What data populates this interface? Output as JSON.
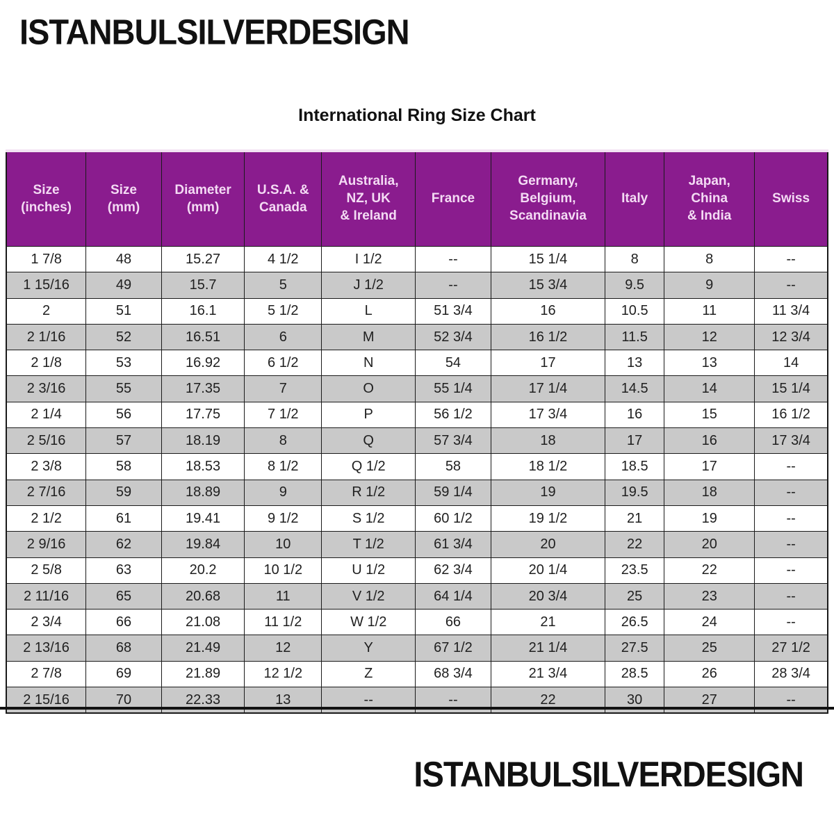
{
  "brand": {
    "top_label": "ISTANBULSILVERDESIGN",
    "bottom_label": "ISTANBULSILVERDESIGN"
  },
  "table": {
    "title": "International Ring Size Chart",
    "columns": [
      "Size\n(inches)",
      "Size\n(mm)",
      "Diameter\n(mm)",
      "U.S.A. &\nCanada",
      "Australia,\nNZ, UK\n& Ireland",
      "France",
      "Germany,\nBelgium,\nScandinavia",
      "Italy",
      "Japan,\nChina\n& India",
      "Swiss"
    ],
    "rows": [
      [
        "1 7/8",
        "48",
        "15.27",
        "4 1/2",
        "I 1/2",
        "--",
        "15 1/4",
        "8",
        "8",
        "--"
      ],
      [
        "1 15/16",
        "49",
        "15.7",
        "5",
        "J 1/2",
        "--",
        "15 3/4",
        "9.5",
        "9",
        "--"
      ],
      [
        "2",
        "51",
        "16.1",
        "5 1/2",
        "L",
        "51 3/4",
        "16",
        "10.5",
        "11",
        "11 3/4"
      ],
      [
        "2 1/16",
        "52",
        "16.51",
        "6",
        "M",
        "52 3/4",
        "16 1/2",
        "11.5",
        "12",
        "12 3/4"
      ],
      [
        "2 1/8",
        "53",
        "16.92",
        "6 1/2",
        "N",
        "54",
        "17",
        "13",
        "13",
        "14"
      ],
      [
        "2 3/16",
        "55",
        "17.35",
        "7",
        "O",
        "55 1/4",
        "17 1/4",
        "14.5",
        "14",
        "15 1/4"
      ],
      [
        "2 1/4",
        "56",
        "17.75",
        "7 1/2",
        "P",
        "56 1/2",
        "17 3/4",
        "16",
        "15",
        "16 1/2"
      ],
      [
        "2 5/16",
        "57",
        "18.19",
        "8",
        "Q",
        "57 3/4",
        "18",
        "17",
        "16",
        "17 3/4"
      ],
      [
        "2 3/8",
        "58",
        "18.53",
        "8 1/2",
        "Q 1/2",
        "58",
        "18 1/2",
        "18.5",
        "17",
        "--"
      ],
      [
        "2 7/16",
        "59",
        "18.89",
        "9",
        "R 1/2",
        "59 1/4",
        "19",
        "19.5",
        "18",
        "--"
      ],
      [
        "2 1/2",
        "61",
        "19.41",
        "9 1/2",
        "S 1/2",
        "60 1/2",
        "19 1/2",
        "21",
        "19",
        "--"
      ],
      [
        "2 9/16",
        "62",
        "19.84",
        "10",
        "T 1/2",
        "61 3/4",
        "20",
        "22",
        "20",
        "--"
      ],
      [
        "2 5/8",
        "63",
        "20.2",
        "10 1/2",
        "U 1/2",
        "62 3/4",
        "20 1/4",
        "23.5",
        "22",
        "--"
      ],
      [
        "2 11/16",
        "65",
        "20.68",
        "11",
        "V 1/2",
        "64 1/4",
        "20 3/4",
        "25",
        "23",
        "--"
      ],
      [
        "2 3/4",
        "66",
        "21.08",
        "11 1/2",
        "W 1/2",
        "66",
        "21",
        "26.5",
        "24",
        "--"
      ],
      [
        "2 13/16",
        "68",
        "21.49",
        "12",
        "Y",
        "67 1/2",
        "21 1/4",
        "27.5",
        "25",
        "27 1/2"
      ],
      [
        "2 7/8",
        "69",
        "21.89",
        "12 1/2",
        "Z",
        "68 3/4",
        "21 3/4",
        "28.5",
        "26",
        "28 3/4"
      ],
      [
        "2 15/16",
        "70",
        "22.33",
        "13",
        "--",
        "--",
        "22",
        "30",
        "27",
        "--"
      ]
    ]
  },
  "colors": {
    "header_bg": "#8a1c8e",
    "header_text": "#f4dbf4",
    "row_alt_bg": "#c9c9c9",
    "border": "#1a1a1a",
    "brand_text": "#111111"
  }
}
